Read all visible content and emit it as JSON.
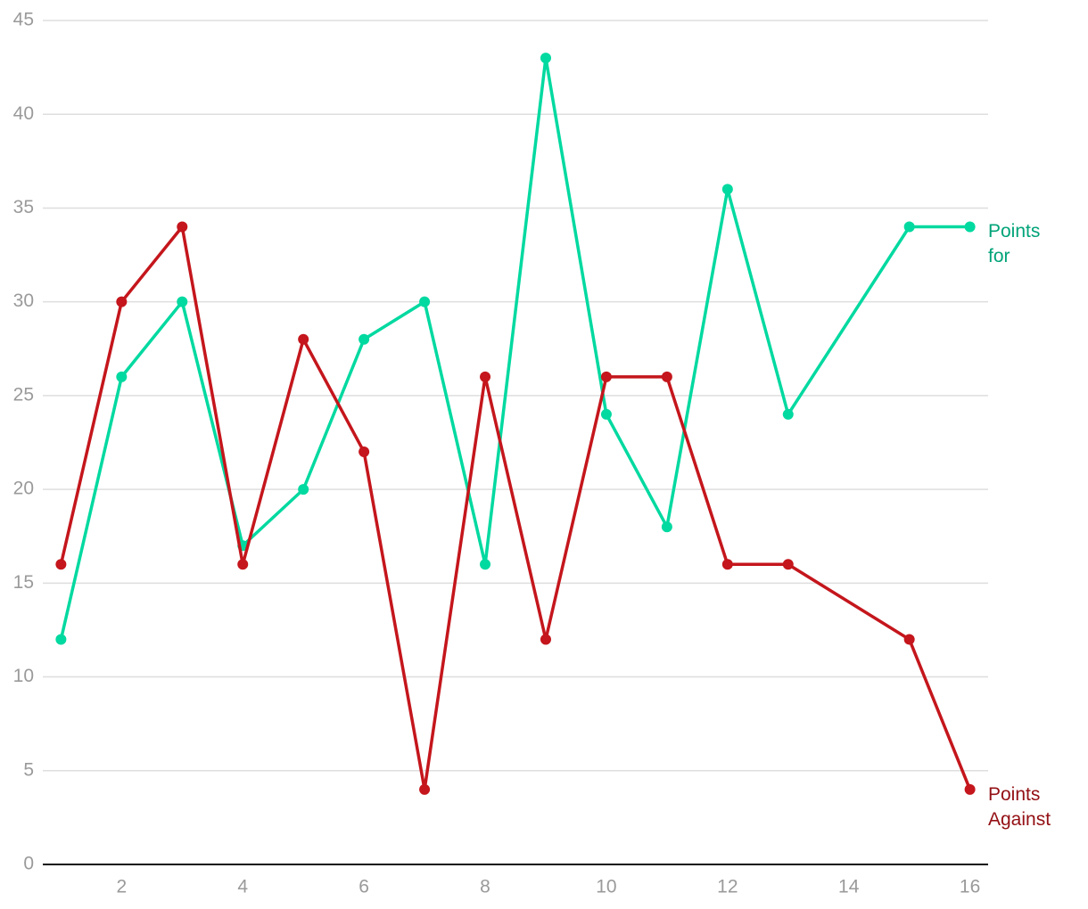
{
  "chart_data": {
    "type": "line",
    "x": [
      1,
      2,
      3,
      4,
      5,
      6,
      7,
      8,
      9,
      10,
      11,
      12,
      13,
      15,
      16
    ],
    "series": [
      {
        "name": "Points for",
        "color": "#00d9a0",
        "values": [
          12,
          26,
          30,
          17,
          20,
          28,
          30,
          16,
          43,
          24,
          18,
          36,
          24,
          34,
          34
        ]
      },
      {
        "name": "Points Against",
        "color": "#c4161c",
        "values": [
          16,
          30,
          34,
          16,
          28,
          22,
          4,
          26,
          12,
          26,
          26,
          16,
          16,
          12,
          4
        ]
      }
    ],
    "xlim": [
      0.7,
      16.3
    ],
    "xticks": [
      2,
      4,
      6,
      8,
      10,
      12,
      14,
      16
    ],
    "ylim": [
      0,
      45
    ],
    "yticks": [
      0,
      5,
      10,
      15,
      20,
      25,
      30,
      35,
      40,
      45
    ],
    "grid": true
  }
}
